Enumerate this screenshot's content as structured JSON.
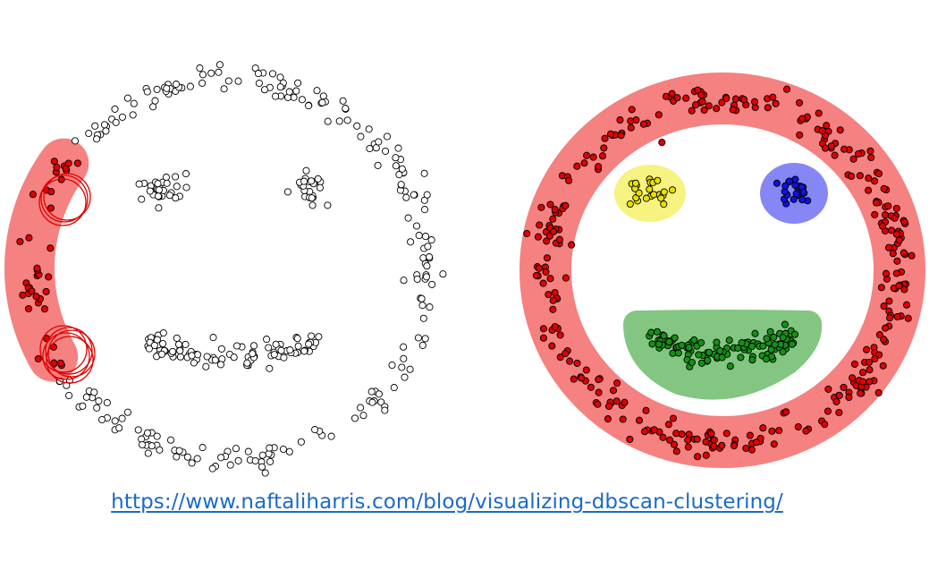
{
  "link": {
    "text": "https://www.naftaliharris.com/blog/visualizing-dbscan-clustering/"
  },
  "colors": {
    "background": "#ffffff",
    "unvisited_point_fill": "#ffffff",
    "point_stroke": "#000000",
    "cluster_face": "#f47a7a",
    "cluster_face_points": "#e00000",
    "cluster_left_eye": "#f7f27a",
    "cluster_left_eye_points": "#e8e000",
    "cluster_right_eye": "#8080f4",
    "cluster_right_eye_points": "#1010e0",
    "cluster_mouth": "#7cc47c",
    "cluster_mouth_points": "#159015",
    "search_circle": "#e00000",
    "link": "#1b6ac9"
  },
  "panels": [
    {
      "name": "dbscan-in-progress",
      "state": "partial",
      "clusters_found": 1
    },
    {
      "name": "dbscan-result",
      "state": "complete",
      "clusters_found": 4
    }
  ]
}
